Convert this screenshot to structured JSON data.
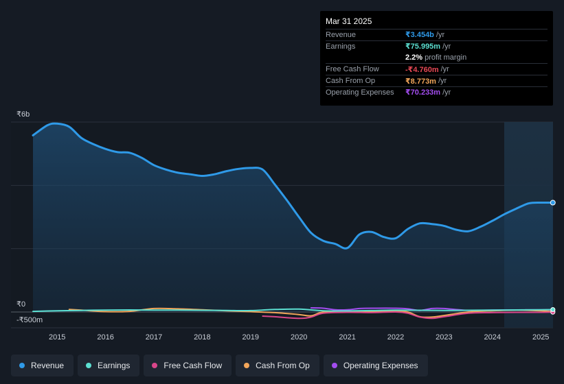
{
  "tooltip": {
    "date": "Mar 31 2025",
    "rows": [
      {
        "label": "Revenue",
        "value": "₹3.454b",
        "unit": "/yr",
        "color": "#2f9ae8"
      },
      {
        "label": "Earnings",
        "value": "₹75.995m",
        "unit": "/yr",
        "color": "#5ce0d2"
      },
      {
        "label": "",
        "value": "2.2%",
        "unit": "profit margin",
        "color": "#ffffff"
      },
      {
        "label": "Free Cash Flow",
        "value": "-₹4.760m",
        "unit": "/yr",
        "color": "#e64855"
      },
      {
        "label": "Cash From Op",
        "value": "₹8.773m",
        "unit": "/yr",
        "color": "#f2a65a"
      },
      {
        "label": "Operating Expenses",
        "value": "₹70.233m",
        "unit": "/yr",
        "color": "#a34df0"
      }
    ]
  },
  "legend": [
    {
      "label": "Revenue",
      "color": "#2f9ae8"
    },
    {
      "label": "Earnings",
      "color": "#5ce0d2"
    },
    {
      "label": "Free Cash Flow",
      "color": "#d9468a"
    },
    {
      "label": "Cash From Op",
      "color": "#f2a65a"
    },
    {
      "label": "Operating Expenses",
      "color": "#a34df0"
    }
  ],
  "chart_data": {
    "type": "line",
    "title": "",
    "xlabel": "",
    "ylabel": "",
    "y_tick_labels": [
      "₹6b",
      "₹0",
      "-₹500m"
    ],
    "x_tick_labels": [
      "2015",
      "2016",
      "2017",
      "2018",
      "2019",
      "2020",
      "2021",
      "2022",
      "2023",
      "2024",
      "2025"
    ],
    "ylim": [
      -500,
      6000
    ],
    "xlim": [
      2014.0,
      2025.25
    ],
    "y_unit": "₹m",
    "series": [
      {
        "name": "Revenue",
        "color": "#2f9ae8",
        "x": [
          2014.5,
          2014.8,
          2015.0,
          2015.25,
          2015.5,
          2015.75,
          2016.0,
          2016.25,
          2016.5,
          2016.75,
          2017.0,
          2017.25,
          2017.5,
          2017.75,
          2018.0,
          2018.25,
          2018.5,
          2018.75,
          2019.0,
          2019.25,
          2019.5,
          2019.75,
          2020.0,
          2020.25,
          2020.5,
          2020.75,
          2021.0,
          2021.25,
          2021.5,
          2021.75,
          2022.0,
          2022.25,
          2022.5,
          2022.75,
          2023.0,
          2023.25,
          2023.5,
          2023.75,
          2024.0,
          2024.25,
          2024.5,
          2024.75,
          2025.0,
          2025.25
        ],
        "values": [
          5580,
          5900,
          5950,
          5850,
          5500,
          5300,
          5150,
          5050,
          5030,
          4870,
          4640,
          4500,
          4400,
          4350,
          4300,
          4350,
          4450,
          4520,
          4550,
          4500,
          4030,
          3530,
          3000,
          2500,
          2250,
          2150,
          2020,
          2450,
          2530,
          2370,
          2330,
          2620,
          2800,
          2780,
          2720,
          2600,
          2550,
          2690,
          2880,
          3090,
          3270,
          3430,
          3454,
          3454
        ]
      },
      {
        "name": "Earnings",
        "color": "#5ce0d2",
        "x": [
          2014.5,
          2015.0,
          2015.5,
          2016.0,
          2016.5,
          2017.0,
          2017.5,
          2018.0,
          2018.5,
          2019.0,
          2019.5,
          2020.0,
          2020.5,
          2021.0,
          2021.5,
          2022.0,
          2022.5,
          2023.0,
          2023.5,
          2024.0,
          2024.5,
          2025.0,
          2025.25
        ],
        "values": [
          20,
          40,
          50,
          60,
          65,
          60,
          60,
          55,
          50,
          45,
          80,
          90,
          40,
          35,
          45,
          60,
          55,
          50,
          55,
          60,
          65,
          70,
          76
        ]
      },
      {
        "name": "Free Cash Flow",
        "color": "#d9468a",
        "x": [
          2019.25,
          2019.5,
          2020.0,
          2020.25,
          2020.5,
          2021.0,
          2021.5,
          2022.0,
          2022.25,
          2022.5,
          2022.75,
          2023.0,
          2023.5,
          2024.0,
          2024.5,
          2025.0,
          2025.25
        ],
        "values": [
          -130,
          -150,
          -200,
          -160,
          -40,
          -10,
          -20,
          0,
          -40,
          -160,
          -200,
          -150,
          -40,
          -20,
          -10,
          -10,
          -5
        ]
      },
      {
        "name": "Cash From Op",
        "color": "#f2a65a",
        "x": [
          2015.25,
          2015.5,
          2016.0,
          2016.5,
          2017.0,
          2017.5,
          2018.0,
          2018.5,
          2019.0,
          2019.5,
          2020.0,
          2020.25,
          2020.5,
          2021.0,
          2021.5,
          2022.0,
          2022.25,
          2022.5,
          2022.75,
          2023.0,
          2023.5,
          2024.0,
          2024.5,
          2025.0,
          2025.25
        ],
        "values": [
          80,
          60,
          10,
          20,
          110,
          100,
          70,
          40,
          10,
          -20,
          -80,
          -120,
          0,
          30,
          20,
          20,
          0,
          -150,
          -160,
          -110,
          0,
          40,
          60,
          40,
          9
        ]
      },
      {
        "name": "Operating Expenses",
        "color": "#a34df0",
        "x": [
          2020.25,
          2020.5,
          2020.75,
          2021.0,
          2021.25,
          2021.5,
          2022.0,
          2022.25,
          2022.5,
          2022.75,
          2023.0,
          2023.5,
          2024.0,
          2024.5,
          2025.0,
          2025.25
        ],
        "values": [
          130,
          120,
          70,
          70,
          110,
          120,
          120,
          100,
          50,
          110,
          110,
          50,
          60,
          65,
          68,
          70
        ]
      }
    ]
  }
}
